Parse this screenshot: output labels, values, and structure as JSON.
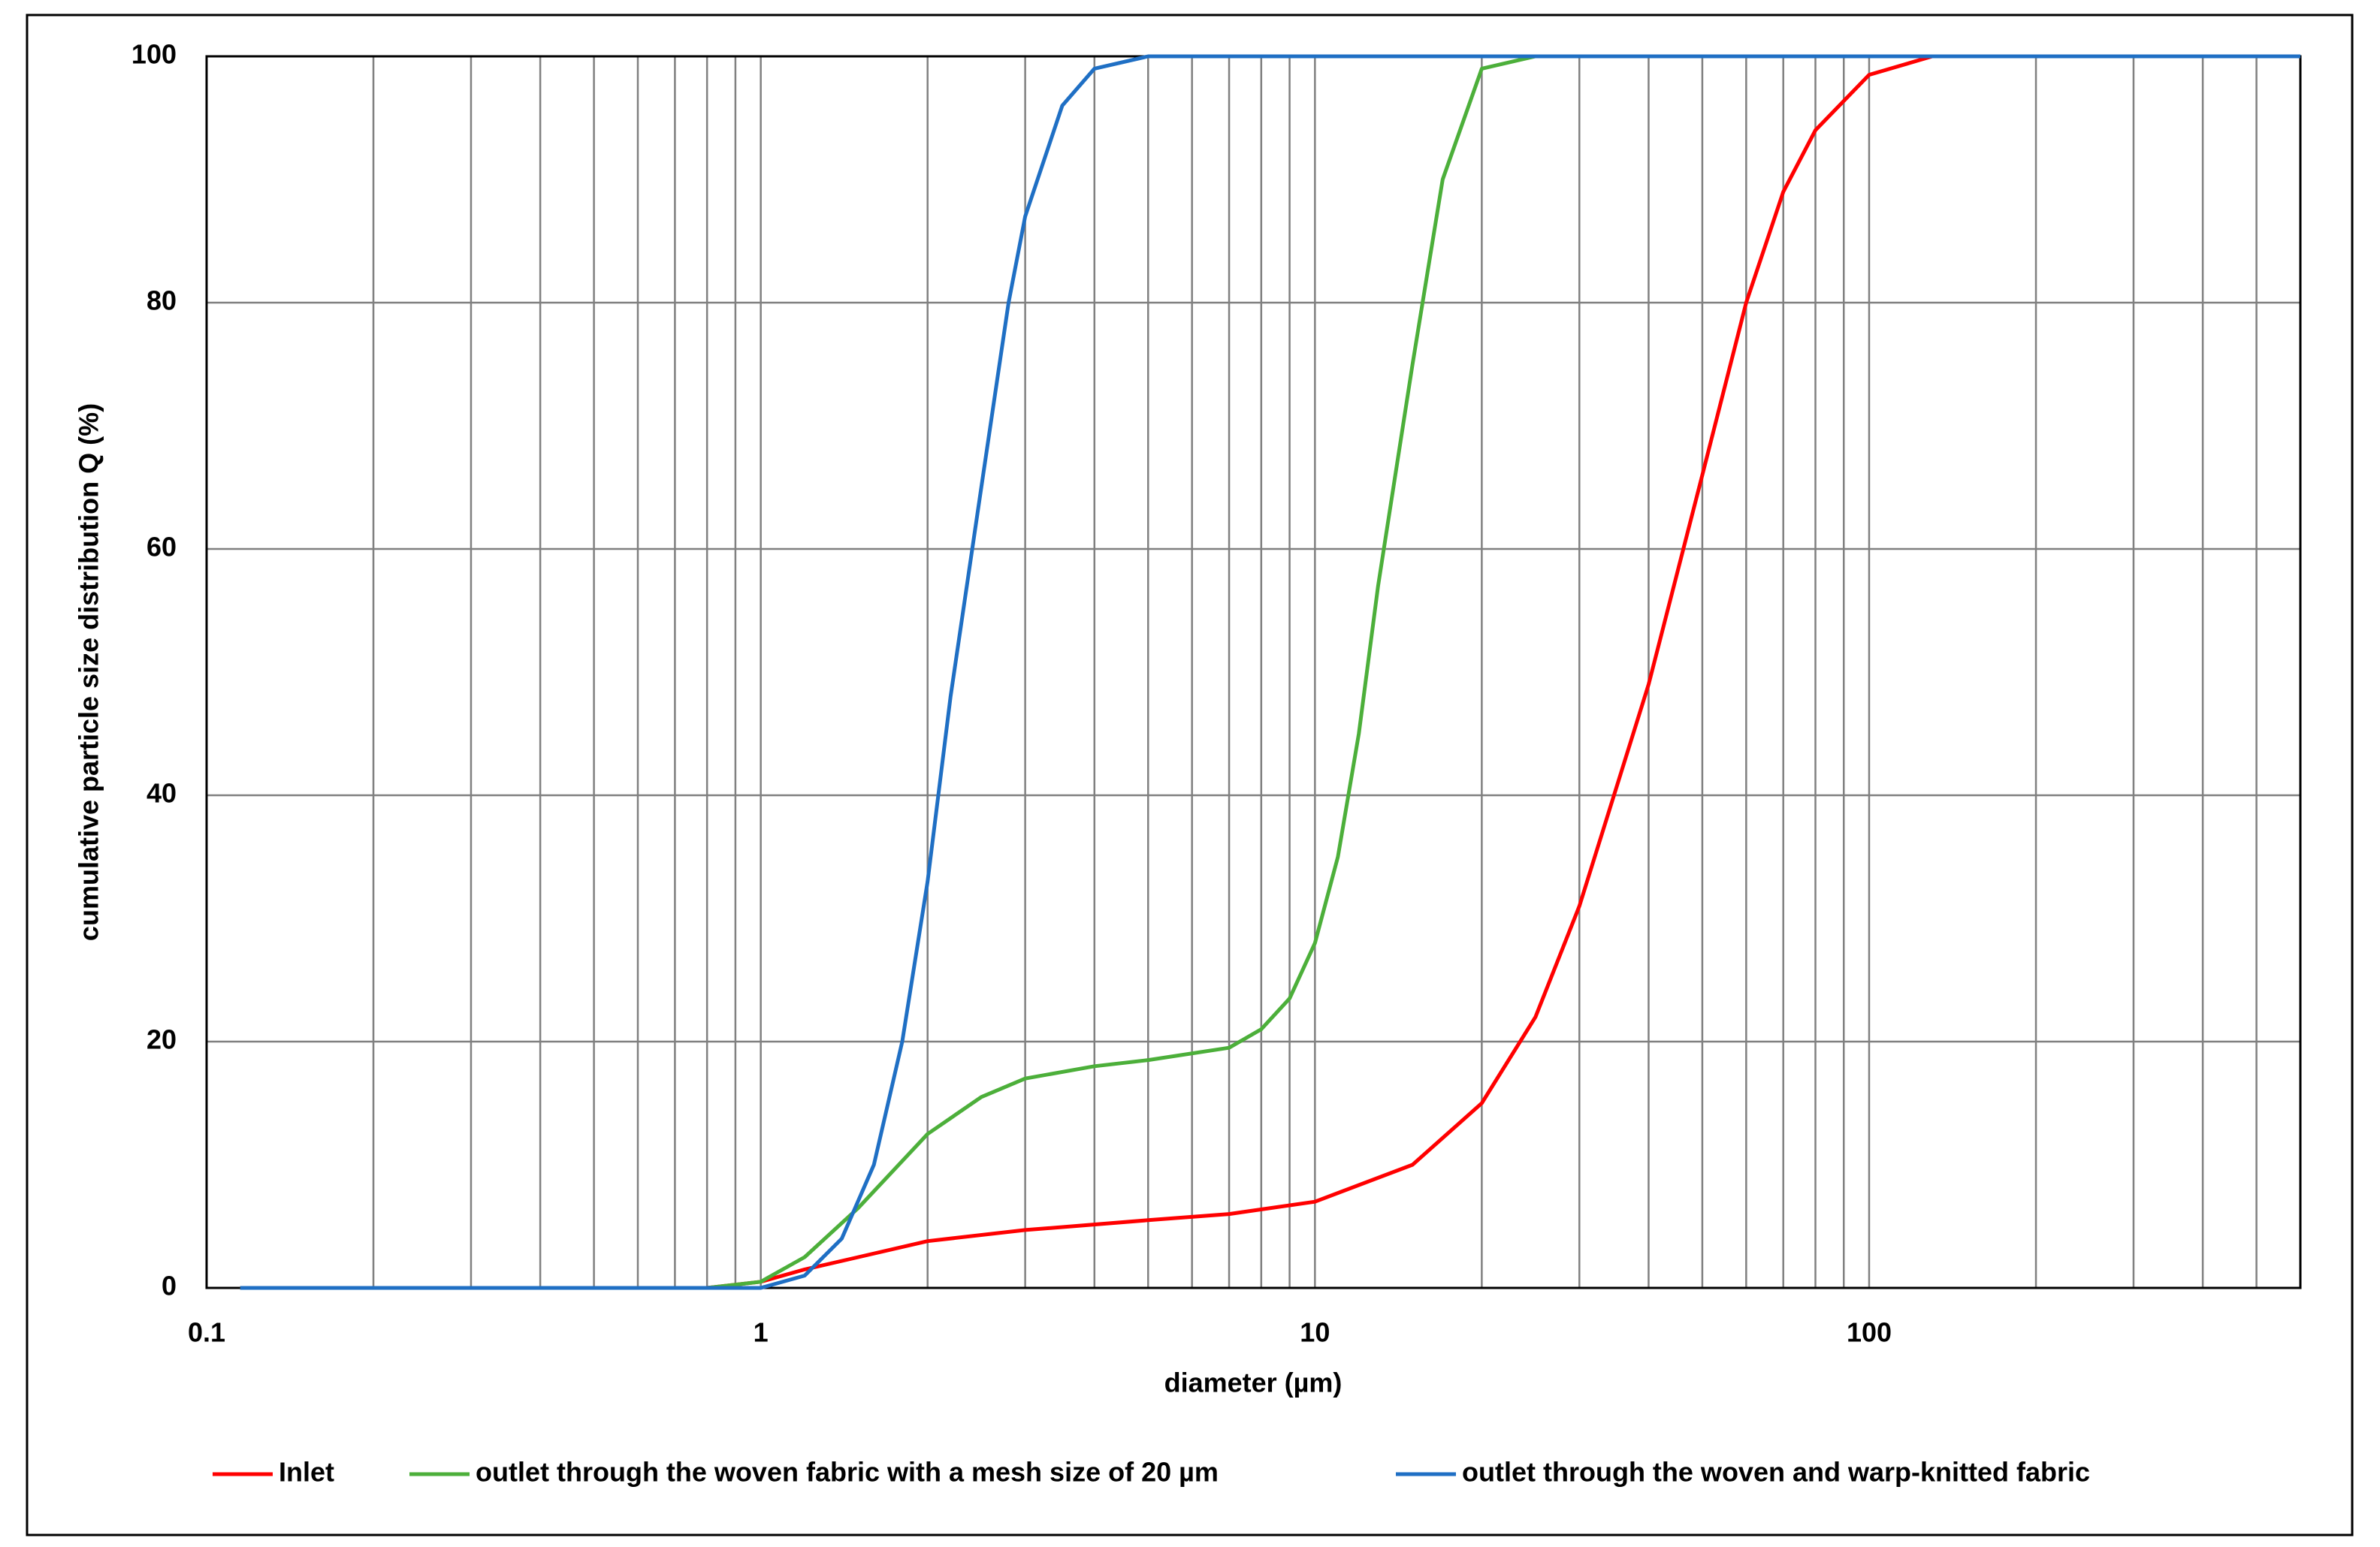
{
  "chart_data": {
    "type": "line",
    "xlabel": "diameter (µm)",
    "ylabel": "cumulative particle size distribution Q (%)",
    "xscale": "log",
    "minor_grid": true,
    "grid": true,
    "xlim": [
      0.1,
      600
    ],
    "xticks": [
      0.1,
      1,
      10,
      100
    ],
    "ylim": [
      0,
      100
    ],
    "yticks": [
      0,
      20,
      40,
      60,
      80,
      100
    ],
    "legend": "bottom",
    "series": [
      {
        "name": "Inlet",
        "color": "#ff0000",
        "x": [
          0.115,
          0.8,
          1,
          1.2,
          1.5,
          2,
          3,
          5,
          7,
          10,
          15,
          20,
          25,
          30,
          40,
          50,
          60,
          70,
          80,
          100,
          130,
          600
        ],
        "values": [
          0,
          0,
          0.5,
          1.5,
          2.5,
          3.8,
          4.7,
          5.5,
          6,
          7,
          10,
          15,
          22,
          31,
          49,
          66,
          80,
          89,
          94,
          98.5,
          100,
          100
        ]
      },
      {
        "name": "outlet through the woven fabric with a mesh size of 20 µm",
        "color": "#4caf3a",
        "x": [
          0.115,
          0.8,
          1,
          1.2,
          1.5,
          2,
          2.5,
          3,
          4,
          5,
          7,
          8,
          9,
          10,
          11,
          12,
          13,
          15,
          17,
          20,
          25,
          600
        ],
        "values": [
          0,
          0,
          0.5,
          2.5,
          6.5,
          12.5,
          15.5,
          17,
          18,
          18.5,
          19.5,
          21,
          23.5,
          28,
          35,
          45,
          57,
          75,
          90,
          99,
          100,
          100
        ]
      },
      {
        "name": "outlet through the woven and warp-knitted fabric",
        "color": "#1f6fc4",
        "x": [
          0.115,
          1,
          1.2,
          1.4,
          1.6,
          1.8,
          2,
          2.2,
          2.5,
          2.8,
          3,
          3.5,
          4,
          5,
          600
        ],
        "values": [
          0,
          0,
          1,
          4,
          10,
          20,
          33,
          48,
          65,
          80,
          87,
          96,
          99,
          100,
          100
        ]
      }
    ]
  }
}
